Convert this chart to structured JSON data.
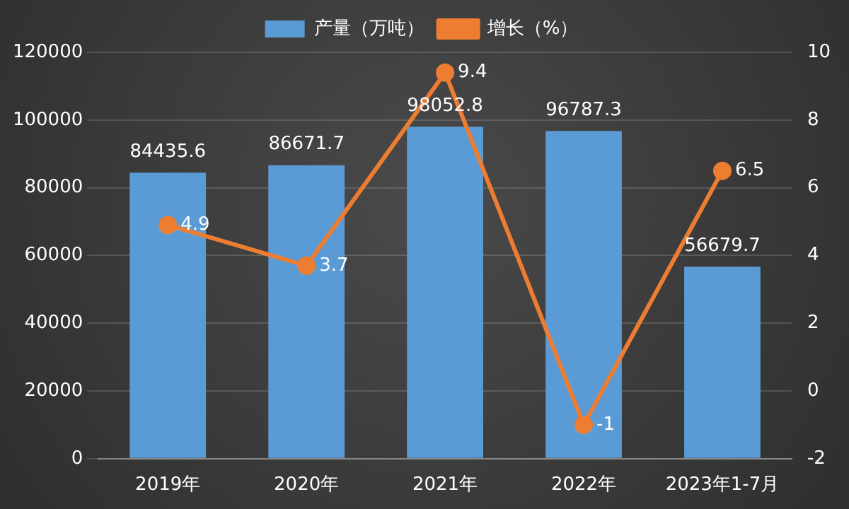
{
  "chart_data": {
    "type": "bar",
    "categories": [
      "2019年",
      "2020年",
      "2021年",
      "2022年",
      "2023年1-7月"
    ],
    "series": [
      {
        "name": "产量（万吨）",
        "color": "#5b9bd5",
        "values": [
          84435.6,
          86671.7,
          98052.8,
          96787.3,
          56679.7
        ]
      },
      {
        "name": "增长（%）",
        "type": "line",
        "axis": "y2",
        "color": "#ed7d31",
        "values": [
          4.9,
          3.7,
          9.4,
          -1,
          6.5
        ]
      }
    ],
    "ylim": [
      0,
      120000
    ],
    "yticks": [
      0,
      20000,
      40000,
      60000,
      80000,
      100000,
      120000
    ],
    "y2lim": [
      -2,
      10
    ],
    "y2ticks": [
      -2,
      0,
      2,
      4,
      6,
      8,
      10
    ],
    "grid": "y",
    "legend": "top",
    "marker": "circle",
    "data_labels": true
  }
}
